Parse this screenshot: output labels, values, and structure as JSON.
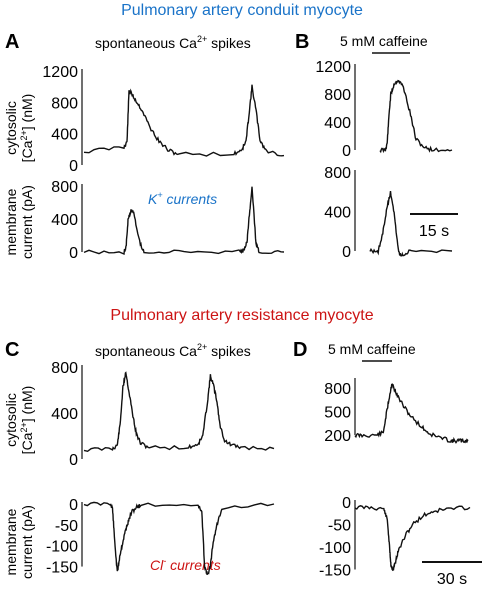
{
  "colors": {
    "top_title": "#1a73c8",
    "bottom_title": "#cc1414",
    "k_label": "#1a73c8",
    "cl_label": "#cc1414",
    "trace": "#111111"
  },
  "section_titles": {
    "top": "Pulmonary artery conduit myocyte",
    "bottom": "Pulmonary artery resistance myocyte"
  },
  "panels": {
    "A": "A",
    "B": "B",
    "C": "C",
    "D": "D"
  },
  "subtitles": {
    "A": {
      "main": "spontaneous Ca",
      "sup": "2+",
      "tail": " spikes"
    },
    "B": "5 mM caffeine",
    "C": {
      "main": "spontaneous Ca",
      "sup": "2+",
      "tail": " spikes"
    },
    "D": "5 mM caffeine"
  },
  "ylabels": {
    "cyto_line1": "cytosolic",
    "cyto_line2_pre": "[Ca",
    "cyto_line2_sup": "2+",
    "cyto_line2_post": "] (nM)",
    "membrane_line1": "membrane",
    "membrane_line2": "current (pA)"
  },
  "annotations": {
    "k": {
      "main": "K",
      "sup": "+",
      "tail": " currents"
    },
    "cl": {
      "main": "Cl",
      "sup": "-",
      "tail": " currents"
    }
  },
  "scale_bars": {
    "B": "15 s",
    "D": "30 s"
  },
  "chart_data": [
    {
      "id": "A-ca",
      "type": "line",
      "ylabel": "cytosolic [Ca2+] (nM)",
      "yticks": [
        0,
        400,
        800,
        1200
      ],
      "ylim": [
        0,
        1200
      ],
      "series": [
        {
          "x": [
            0,
            40,
            43,
            45,
            47,
            52,
            58,
            66,
            75,
            85,
            95,
            150,
            158,
            162,
            165,
            168,
            172,
            176,
            182,
            200
          ],
          "y": [
            170,
            230,
            300,
            950,
            920,
            820,
            700,
            480,
            300,
            180,
            140,
            140,
            200,
            300,
            650,
            1000,
            700,
            320,
            180,
            120
          ]
        }
      ]
    },
    {
      "id": "A-k",
      "type": "line",
      "ylabel": "membrane current (pA)",
      "yticks": [
        0,
        400,
        800
      ],
      "ylim": [
        0,
        800
      ],
      "series": [
        {
          "x": [
            0,
            40,
            42,
            44,
            47,
            50,
            55,
            60,
            100,
            155,
            160,
            163,
            165,
            168,
            172,
            175,
            200
          ],
          "y": [
            0,
            0,
            50,
            380,
            510,
            470,
            150,
            0,
            0,
            0,
            20,
            120,
            400,
            790,
            100,
            0,
            0
          ]
        }
      ]
    },
    {
      "id": "B-ca",
      "type": "line",
      "yticks": [
        0,
        400,
        800,
        1200
      ],
      "ylim": [
        0,
        1200
      ],
      "series": [
        {
          "x": [
            0,
            3,
            4,
            5,
            6,
            8,
            10,
            13,
            17,
            20,
            25,
            30,
            40
          ],
          "y": [
            0,
            0,
            100,
            500,
            800,
            950,
            1000,
            900,
            500,
            150,
            30,
            0,
            0
          ]
        }
      ]
    },
    {
      "id": "B-k",
      "type": "line",
      "yticks": [
        0,
        400,
        800
      ],
      "ylim": [
        0,
        800
      ],
      "series": [
        {
          "x": [
            0,
            4,
            6,
            8,
            10,
            12,
            14,
            16,
            20,
            40
          ],
          "y": [
            0,
            0,
            150,
            400,
            600,
            350,
            -20,
            -40,
            0,
            0
          ]
        }
      ]
    },
    {
      "id": "C-ca",
      "type": "line",
      "ylabel": "cytosolic [Ca2+] (nM)",
      "yticks": [
        0,
        400,
        800
      ],
      "ylim": [
        0,
        800
      ],
      "series": [
        {
          "x": [
            0,
            30,
            35,
            38,
            41,
            44,
            47,
            51,
            55,
            60,
            70,
            110,
            120,
            125,
            130,
            133,
            136,
            140,
            143,
            148,
            155,
            165,
            200
          ],
          "y": [
            80,
            90,
            120,
            300,
            620,
            760,
            600,
            400,
            220,
            130,
            100,
            100,
            130,
            200,
            500,
            720,
            650,
            500,
            300,
            160,
            120,
            100,
            90
          ]
        }
      ]
    },
    {
      "id": "C-cl",
      "type": "line",
      "ylabel": "membrane current (pA)",
      "yticks": [
        0,
        -50,
        -100,
        -150
      ],
      "ylim": [
        -175,
        0
      ],
      "series": [
        {
          "x": [
            0,
            28,
            30,
            32,
            35,
            38,
            41,
            44,
            47,
            50,
            55,
            60,
            120,
            124,
            127,
            130,
            133,
            136,
            140,
            145,
            200
          ],
          "y": [
            0,
            0,
            -10,
            -80,
            -165,
            -120,
            -90,
            -60,
            -40,
            -20,
            -8,
            -2,
            -2,
            -20,
            -150,
            -170,
            -150,
            -90,
            -50,
            -10,
            0
          ]
        }
      ]
    },
    {
      "id": "D-ca",
      "type": "line",
      "yticks": [
        200,
        500,
        800
      ],
      "ylim": [
        100,
        900
      ],
      "series": [
        {
          "x": [
            0,
            10,
            30,
            40,
            45,
            50,
            52,
            55,
            60,
            70,
            80,
            95,
            105,
            120,
            135,
            140,
            148,
            155,
            160
          ],
          "y": [
            200,
            195,
            200,
            230,
            500,
            750,
            850,
            800,
            700,
            550,
            430,
            300,
            220,
            170,
            130,
            125,
            130,
            125,
            128
          ]
        }
      ]
    },
    {
      "id": "D-cl",
      "type": "line",
      "yticks": [
        0,
        -50,
        -100,
        -150
      ],
      "ylim": [
        -160,
        0
      ],
      "series": [
        {
          "x": [
            0,
            20,
            40,
            45,
            48,
            50,
            53,
            56,
            60,
            70,
            80,
            95,
            110,
            130,
            160
          ],
          "y": [
            -12,
            -12,
            -15,
            -40,
            -100,
            -140,
            -150,
            -135,
            -110,
            -75,
            -50,
            -30,
            -20,
            -15,
            -12
          ]
        }
      ]
    }
  ]
}
